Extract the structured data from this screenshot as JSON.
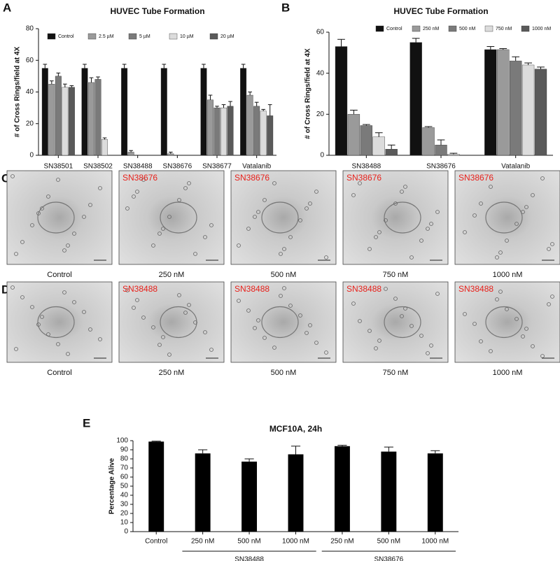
{
  "chart_data": [
    {
      "type": "bar",
      "panel_label": "A",
      "title": "HUVEC Tube Formation",
      "y_label": "# of Cross Rings/field at 4X",
      "categories": [
        "SN38501",
        "SN38502",
        "SN38488",
        "SN38676",
        "SN38677",
        "Vatalanib"
      ],
      "series": [
        {
          "name": "Control",
          "color": "#111111",
          "values": [
            55,
            55,
            55,
            55,
            55,
            55
          ],
          "errors": [
            2.5,
            2.5,
            2.5,
            2.5,
            2.5,
            2.5
          ]
        },
        {
          "name": "2.5 µM",
          "color": "#9a9a9a",
          "values": [
            45,
            46,
            2,
            1,
            35,
            38
          ],
          "errors": [
            2,
            3,
            1,
            1,
            3,
            2
          ]
        },
        {
          "name": "5 µM",
          "color": "#7a7a7a",
          "values": [
            50,
            48,
            0,
            0,
            30,
            31
          ],
          "errors": [
            2,
            1.5,
            0,
            0,
            1,
            2.5
          ]
        },
        {
          "name": "10 µM",
          "color": "#dcdcdc",
          "values": [
            43,
            10,
            0,
            0,
            30,
            28
          ],
          "errors": [
            2,
            1,
            0,
            0,
            2,
            1
          ]
        },
        {
          "name": "20 µM",
          "color": "#5a5a5a",
          "values": [
            43,
            0,
            0,
            0,
            31,
            25
          ],
          "errors": [
            1,
            0,
            0,
            0,
            3,
            7
          ]
        }
      ],
      "ylim": [
        0,
        80
      ],
      "yticks": [
        0,
        20,
        40,
        60,
        80
      ]
    },
    {
      "type": "bar",
      "panel_label": "B",
      "title": "HUVEC Tube Formation",
      "y_label": "# of Cross Rings/field at 4X",
      "categories": [
        "SN38488",
        "SN38676",
        "Vatalanib"
      ],
      "series": [
        {
          "name": "Control",
          "color": "#111111",
          "values": [
            53,
            55,
            51.5
          ],
          "errors": [
            3.5,
            2,
            1.5
          ]
        },
        {
          "name": "250 nM",
          "color": "#9a9a9a",
          "values": [
            20,
            13.5,
            51.5
          ],
          "errors": [
            2,
            0.5,
            0.5
          ]
        },
        {
          "name": "500 nM",
          "color": "#7a7a7a",
          "values": [
            14.5,
            5,
            46
          ],
          "errors": [
            0.5,
            2.5,
            2
          ]
        },
        {
          "name": "750 nM",
          "color": "#dcdcdc",
          "values": [
            9,
            0.5,
            44
          ],
          "errors": [
            2,
            0.5,
            1
          ]
        },
        {
          "name": "1000 nM",
          "color": "#5a5a5a",
          "values": [
            3,
            0,
            42
          ],
          "errors": [
            2,
            0,
            1
          ]
        }
      ],
      "ylim": [
        0,
        60
      ],
      "yticks": [
        0,
        20,
        40,
        60
      ]
    },
    {
      "type": "bar",
      "panel_label": "E",
      "title": "MCF10A, 24h",
      "y_label": "Percentage Alive",
      "categories": [
        "Control",
        "250 nM",
        "500 nM",
        "1000 nM",
        "250 nM",
        "500 nM",
        "1000 nM"
      ],
      "x_group_labels": [
        "SN38488",
        "SN38676"
      ],
      "color": "#000000",
      "values": [
        99,
        86,
        77,
        85,
        94,
        88,
        86
      ],
      "errors": [
        0.5,
        4,
        3,
        9,
        1,
        5,
        3
      ],
      "ylim": [
        0,
        100
      ],
      "yticks": [
        0,
        10,
        20,
        30,
        40,
        50,
        60,
        70,
        80,
        90,
        100
      ]
    }
  ],
  "image_panels": [
    {
      "label": "C",
      "images": [
        {
          "caption": "Control"
        },
        {
          "caption": "250 nM",
          "overlay": "SN38676"
        },
        {
          "caption": "500 nM",
          "overlay": "SN38676"
        },
        {
          "caption": "750 nM",
          "overlay": "SN38676"
        },
        {
          "caption": "1000 nM",
          "overlay": "SN38676"
        }
      ]
    },
    {
      "label": "D",
      "images": [
        {
          "caption": "Control"
        },
        {
          "caption": "250 nM",
          "overlay": "SN38488"
        },
        {
          "caption": "500 nM",
          "overlay": "SN38488"
        },
        {
          "caption": "750 nM",
          "overlay": "SN38488"
        },
        {
          "caption": "1000 nM",
          "overlay": "SN38488"
        }
      ]
    }
  ]
}
